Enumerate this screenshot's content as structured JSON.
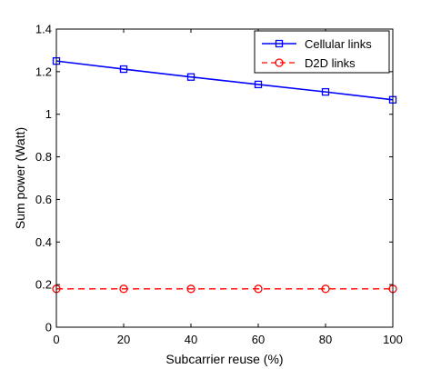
{
  "chart_data": {
    "type": "line",
    "xlabel": "Subcarrier reuse (%)",
    "ylabel": "Sum power (Watt)",
    "xlim": [
      0,
      100
    ],
    "ylim": [
      0,
      1.4
    ],
    "x_ticks": [
      "0",
      "20",
      "40",
      "60",
      "80",
      "100"
    ],
    "y_ticks": [
      "0",
      "0.2",
      "0.4",
      "0.6",
      "0.8",
      "1",
      "1.2",
      "1.4"
    ],
    "x_tick_values": [
      0,
      20,
      40,
      60,
      80,
      100
    ],
    "y_tick_values": [
      0,
      0.2,
      0.4,
      0.6,
      0.8,
      1.0,
      1.2,
      1.4
    ],
    "grid": false,
    "legend_position": "top-right",
    "x": [
      0,
      20,
      40,
      60,
      80,
      100
    ],
    "series": [
      {
        "name": "Cellular links",
        "values": [
          1.25,
          1.212,
          1.175,
          1.14,
          1.105,
          1.068
        ],
        "color": "#0000ff",
        "line_style": "solid",
        "marker": "square"
      },
      {
        "name": "D2D links",
        "values": [
          0.18,
          0.18,
          0.18,
          0.18,
          0.18,
          0.18
        ],
        "color": "#ff0000",
        "line_style": "dashed",
        "marker": "circle"
      }
    ]
  }
}
